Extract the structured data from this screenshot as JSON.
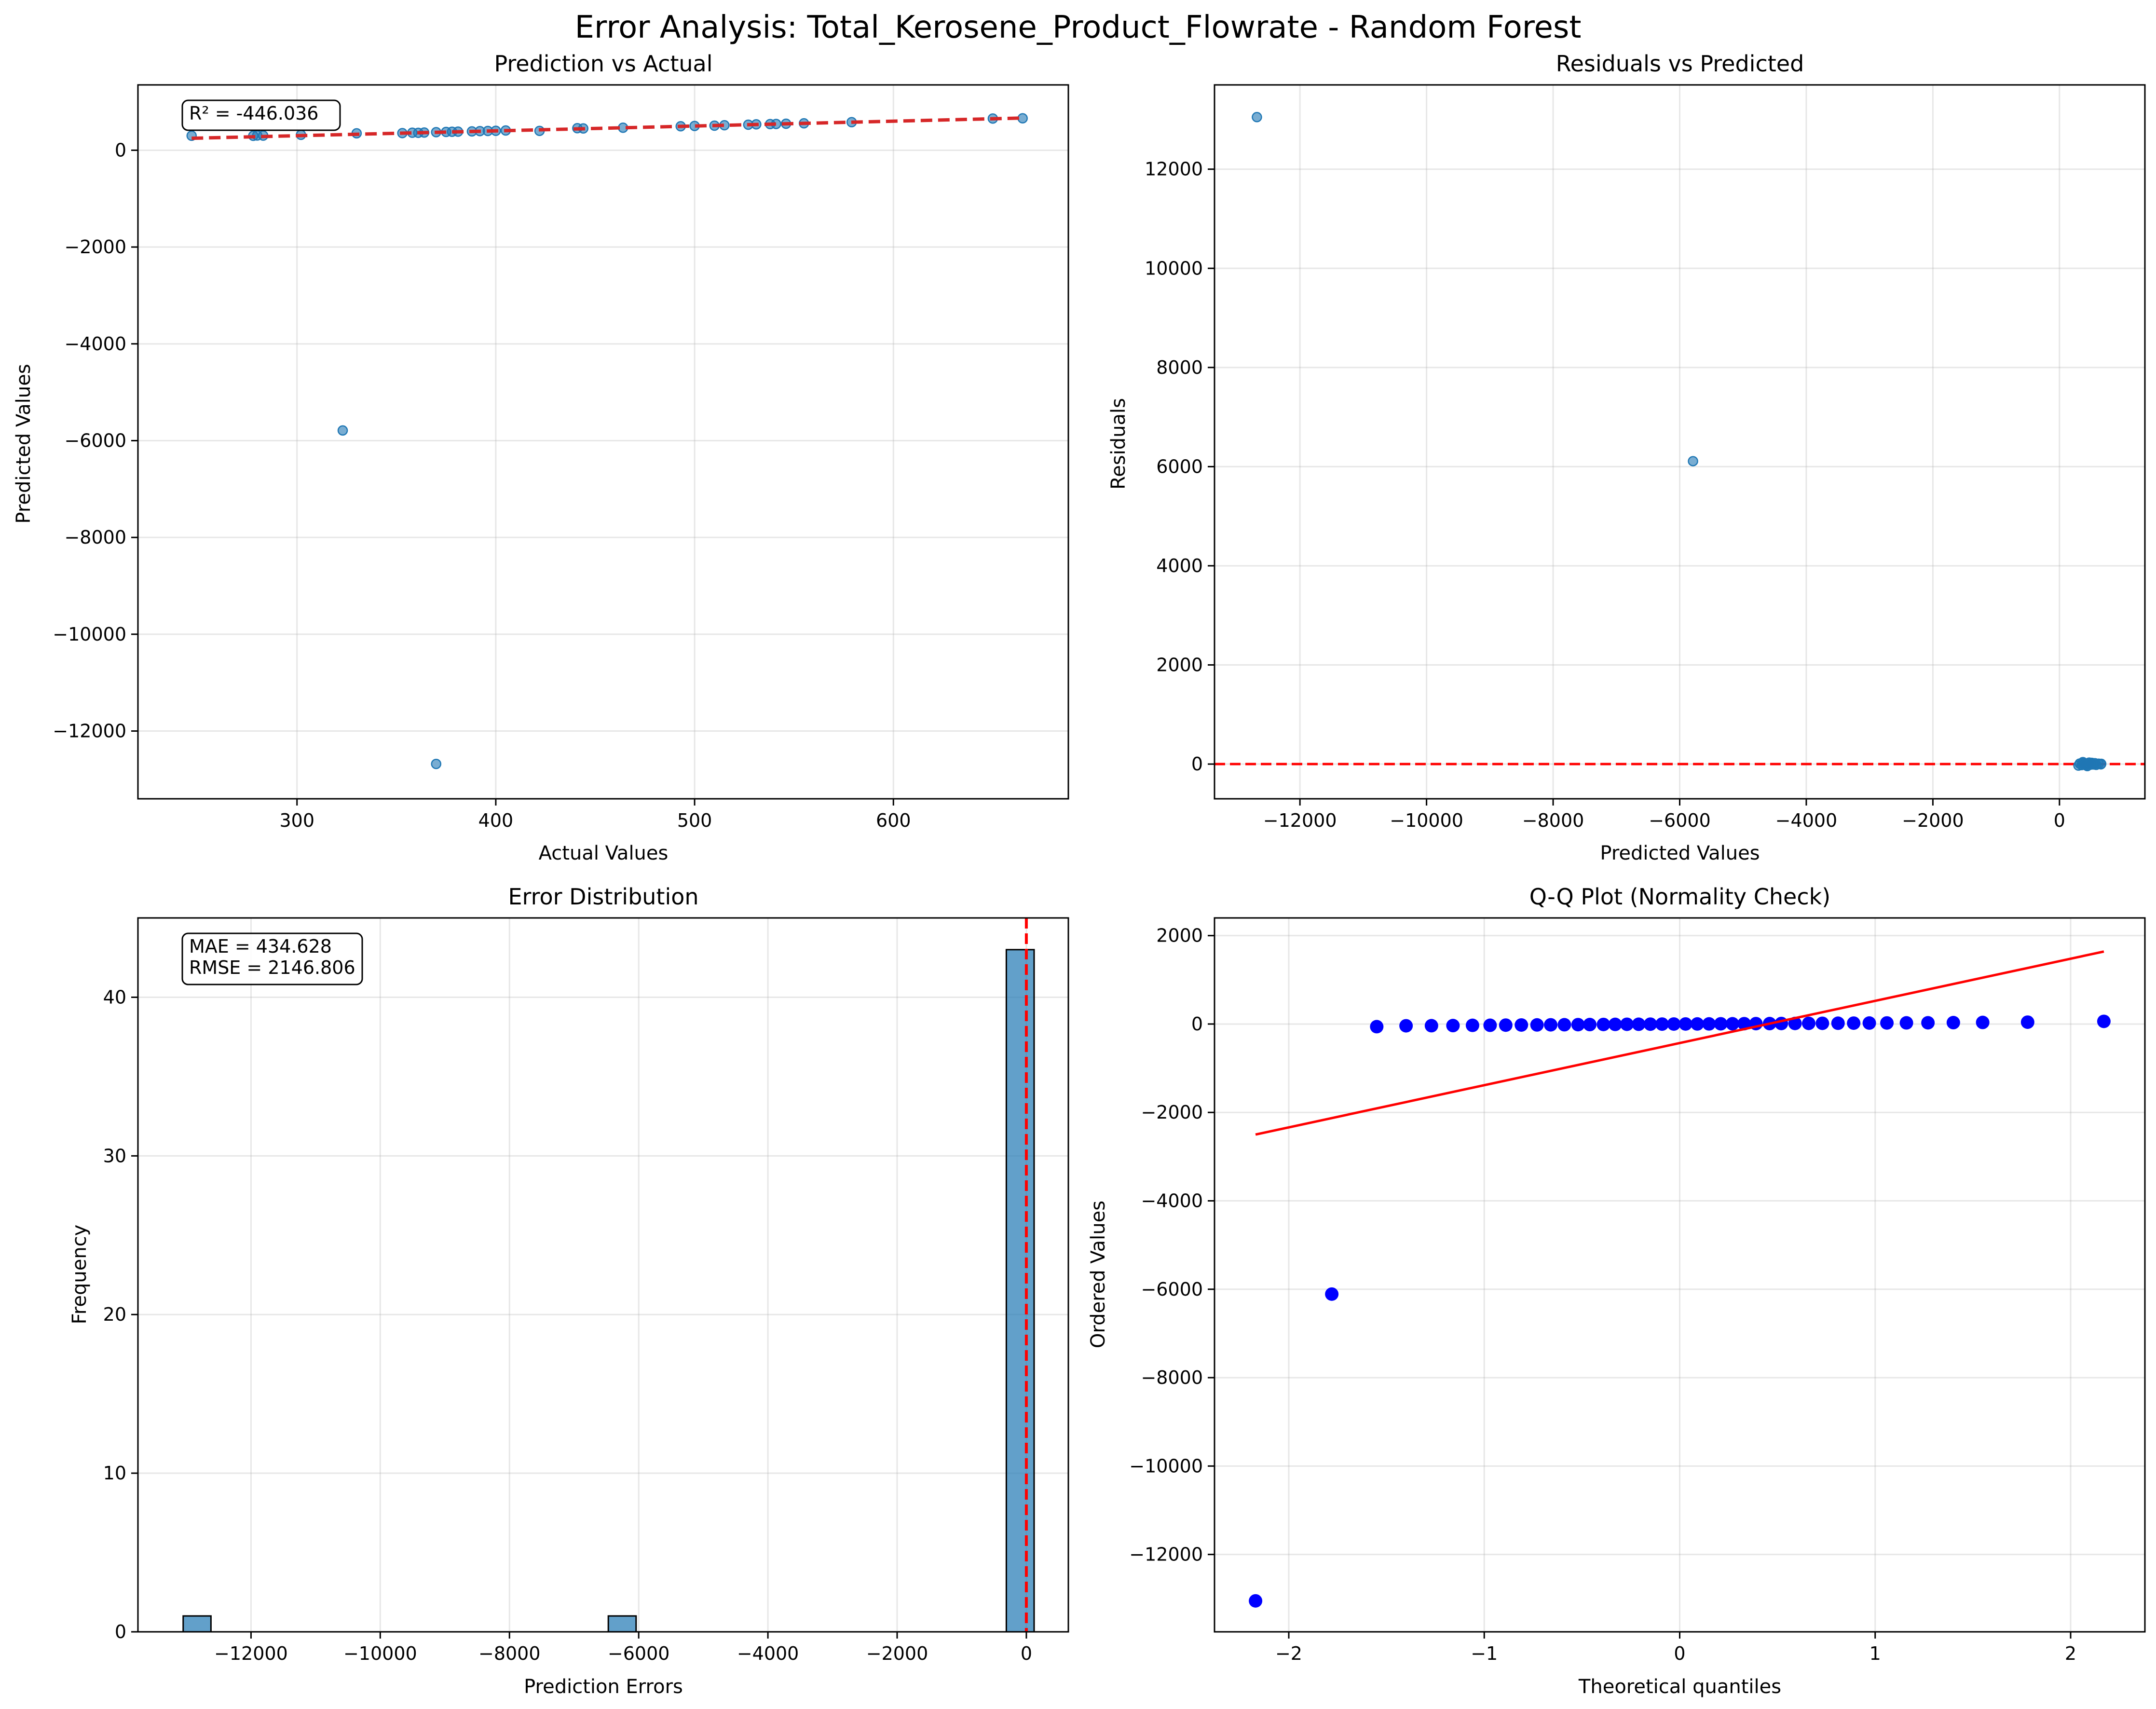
{
  "figure": {
    "title": "Error Analysis: Total_Kerosene_Product_Flowrate - Random Forest"
  },
  "chart_data": [
    {
      "id": "pva",
      "type": "scatter",
      "title": "Prediction vs Actual",
      "xlabel": "Actual Values",
      "ylabel": "Predicted Values",
      "xlim": [
        220,
        688
      ],
      "ylim": [
        -13400,
        1350
      ],
      "xticks": [
        300,
        400,
        500,
        600
      ],
      "yticks": [
        -12000,
        -10000,
        -8000,
        -6000,
        -4000,
        -2000,
        0
      ],
      "grid": true,
      "point_color": "#1f77b4",
      "annotation": "R² = -446.036",
      "annotation_position": "top-left",
      "fit_line": {
        "color": "#d62728",
        "style": "dashed",
        "x": [
          247,
          665
        ],
        "y": [
          247,
          665
        ]
      },
      "points": [
        [
          247,
          300
        ],
        [
          278,
          298
        ],
        [
          280,
          305
        ],
        [
          283,
          302
        ],
        [
          302,
          318
        ],
        [
          330,
          350
        ],
        [
          353,
          354
        ],
        [
          358,
          362
        ],
        [
          361,
          360
        ],
        [
          364,
          366
        ],
        [
          370,
          373
        ],
        [
          375,
          378
        ],
        [
          378,
          382
        ],
        [
          381,
          384
        ],
        [
          388,
          389
        ],
        [
          392,
          395
        ],
        [
          396,
          398
        ],
        [
          400,
          402
        ],
        [
          405,
          408
        ],
        [
          422,
          400
        ],
        [
          441,
          455
        ],
        [
          444,
          450
        ],
        [
          464,
          465
        ],
        [
          493,
          495
        ],
        [
          500,
          502
        ],
        [
          510,
          508
        ],
        [
          515,
          516
        ],
        [
          527,
          528
        ],
        [
          531,
          535
        ],
        [
          538,
          540
        ],
        [
          541,
          543
        ],
        [
          546,
          548
        ],
        [
          555,
          556
        ],
        [
          579,
          580
        ],
        [
          650,
          655
        ],
        [
          665,
          660
        ],
        [
          323,
          -5790
        ],
        [
          370,
          -12680
        ]
      ]
    },
    {
      "id": "rvp",
      "type": "scatter",
      "title": "Residuals vs Predicted",
      "xlabel": "Predicted Values",
      "ylabel": "Residuals",
      "xlim": [
        -13350,
        1350
      ],
      "ylim": [
        -700,
        13700
      ],
      "xticks": [
        -12000,
        -10000,
        -8000,
        -6000,
        -4000,
        -2000,
        0
      ],
      "yticks": [
        0,
        2000,
        4000,
        6000,
        8000,
        10000,
        12000
      ],
      "grid": true,
      "point_color": "#1f77b4",
      "ref_line": {
        "y": 0,
        "color": "#ff0000",
        "style": "dashed"
      },
      "points": [
        [
          -12680,
          13050
        ],
        [
          -5790,
          6110
        ],
        [
          300,
          -30
        ],
        [
          320,
          10
        ],
        [
          350,
          -20
        ],
        [
          360,
          20
        ],
        [
          380,
          -5
        ],
        [
          400,
          15
        ],
        [
          420,
          -25
        ],
        [
          450,
          5
        ],
        [
          470,
          30
        ],
        [
          500,
          -10
        ],
        [
          520,
          12
        ],
        [
          540,
          -8
        ],
        [
          560,
          18
        ],
        [
          580,
          -15
        ],
        [
          620,
          8
        ],
        [
          655,
          -5
        ],
        [
          660,
          5
        ],
        [
          440,
          -40
        ],
        [
          370,
          40
        ],
        [
          510,
          25
        ],
        [
          395,
          -12
        ],
        [
          480,
          2
        ]
      ]
    },
    {
      "id": "hist",
      "type": "bar",
      "title": "Error Distribution",
      "xlabel": "Prediction Errors",
      "ylabel": "Frequency",
      "xlim": [
        -13750,
        650
      ],
      "ylim": [
        0,
        45
      ],
      "xticks": [
        -12000,
        -10000,
        -8000,
        -6000,
        -4000,
        -2000,
        0
      ],
      "yticks": [
        0,
        10,
        20,
        30,
        40
      ],
      "grid": true,
      "bar_color": "#1f77b4",
      "annotation_lines": [
        "MAE = 434.628",
        "RMSE = 2146.806"
      ],
      "annotation_position": "top-left",
      "ref_line": {
        "x": 0,
        "color": "#ff0000",
        "style": "dashed"
      },
      "bars": [
        {
          "x0": -13050,
          "x1": -12620,
          "count": 1
        },
        {
          "x0": -6470,
          "x1": -6040,
          "count": 1
        },
        {
          "x0": -310,
          "x1": 120,
          "count": 43
        }
      ]
    },
    {
      "id": "qq",
      "type": "scatter",
      "title": "Q-Q Plot (Normality Check)",
      "xlabel": "Theoretical quantiles",
      "ylabel": "Ordered Values",
      "xlim": [
        -2.38,
        2.38
      ],
      "ylim": [
        -13750,
        2400
      ],
      "xticks": [
        -2,
        -1,
        0,
        1,
        2
      ],
      "yticks": [
        -12000,
        -10000,
        -8000,
        -6000,
        -4000,
        -2000,
        0,
        2000
      ],
      "grid": true,
      "point_color": "#0000ff",
      "fit_line": {
        "color": "#ff0000",
        "style": "solid",
        "x": [
          -2.17,
          2.17
        ],
        "y": [
          -2500,
          1640
        ]
      },
      "points": [
        [
          -2.17,
          -13050
        ],
        [
          -1.78,
          -6110
        ],
        [
          -1.55,
          -60
        ],
        [
          -1.4,
          -40
        ],
        [
          -1.27,
          -38
        ],
        [
          -1.16,
          -35
        ],
        [
          -1.06,
          -30
        ],
        [
          -0.97,
          -28
        ],
        [
          -0.89,
          -25
        ],
        [
          -0.81,
          -22
        ],
        [
          -0.73,
          -20
        ],
        [
          -0.66,
          -18
        ],
        [
          -0.59,
          -16
        ],
        [
          -0.52,
          -14
        ],
        [
          -0.46,
          -12
        ],
        [
          -0.39,
          -10
        ],
        [
          -0.33,
          -8
        ],
        [
          -0.27,
          -6
        ],
        [
          -0.21,
          -5
        ],
        [
          -0.15,
          -3
        ],
        [
          -0.09,
          -2
        ],
        [
          -0.03,
          0
        ],
        [
          0.03,
          1
        ],
        [
          0.09,
          2
        ],
        [
          0.15,
          3
        ],
        [
          0.21,
          5
        ],
        [
          0.27,
          6
        ],
        [
          0.33,
          8
        ],
        [
          0.39,
          9
        ],
        [
          0.46,
          10
        ],
        [
          0.52,
          12
        ],
        [
          0.59,
          13
        ],
        [
          0.66,
          15
        ],
        [
          0.73,
          16
        ],
        [
          0.81,
          18
        ],
        [
          0.89,
          20
        ],
        [
          0.97,
          22
        ],
        [
          1.06,
          24
        ],
        [
          1.16,
          26
        ],
        [
          1.27,
          28
        ],
        [
          1.4,
          32
        ],
        [
          1.55,
          36
        ],
        [
          1.78,
          42
        ],
        [
          2.17,
          60
        ]
      ]
    }
  ]
}
